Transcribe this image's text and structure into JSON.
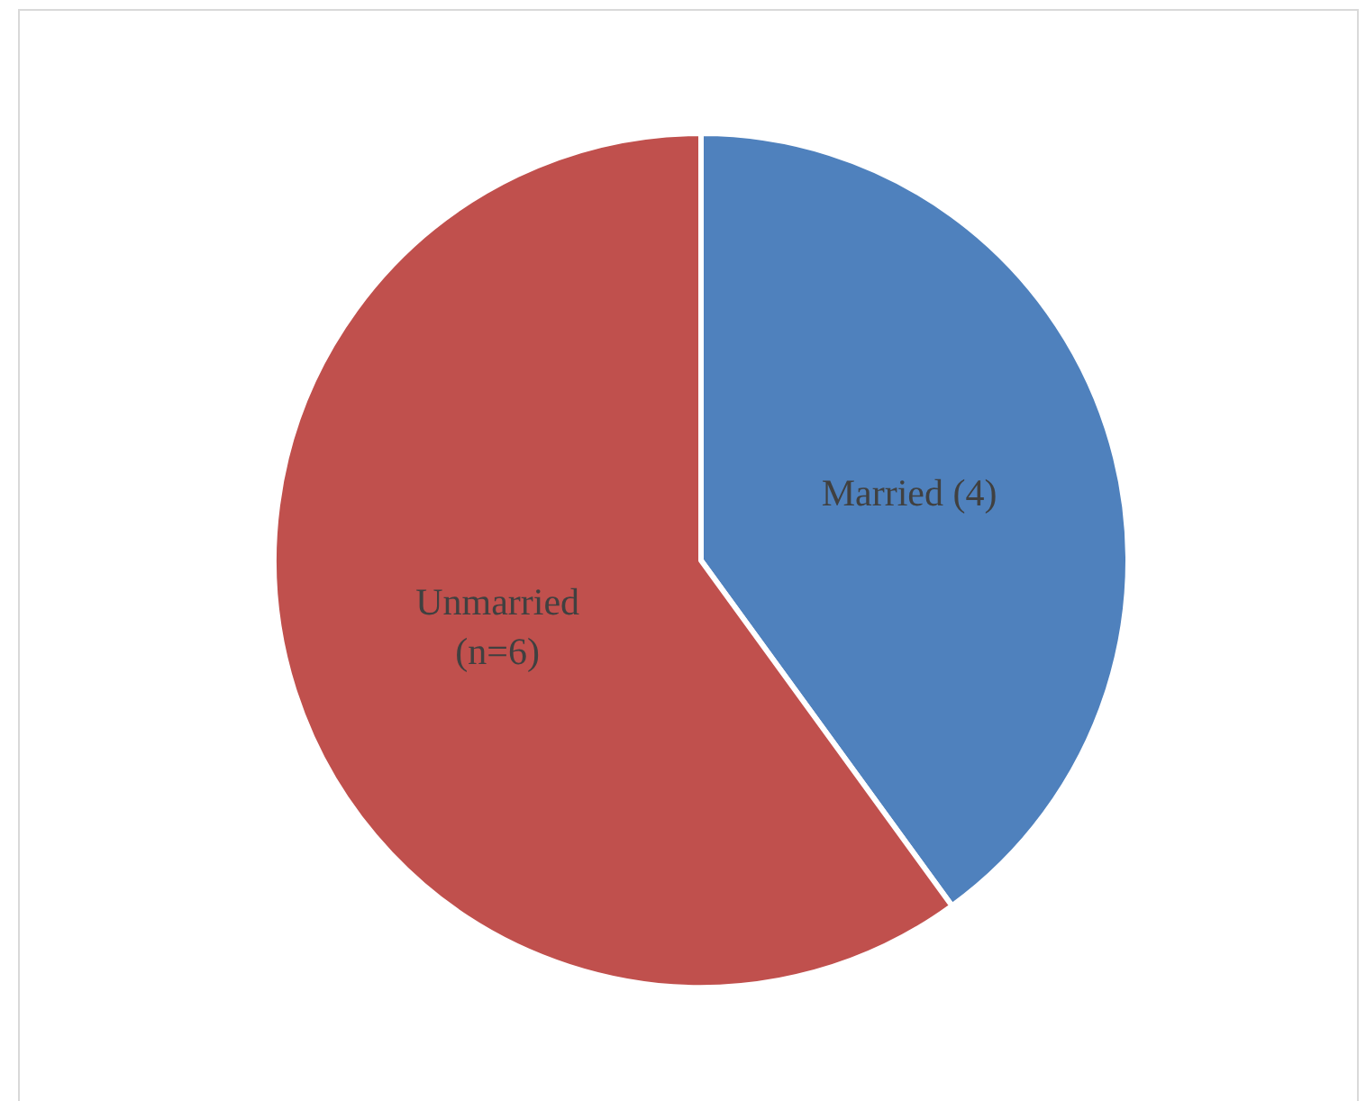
{
  "chart_data": {
    "type": "pie",
    "categories": [
      "Married (4)",
      "Unmarried\n(n=6)"
    ],
    "values": [
      4,
      6
    ],
    "colors": [
      "#4f81bd",
      "#c0504d"
    ],
    "legend": false
  }
}
